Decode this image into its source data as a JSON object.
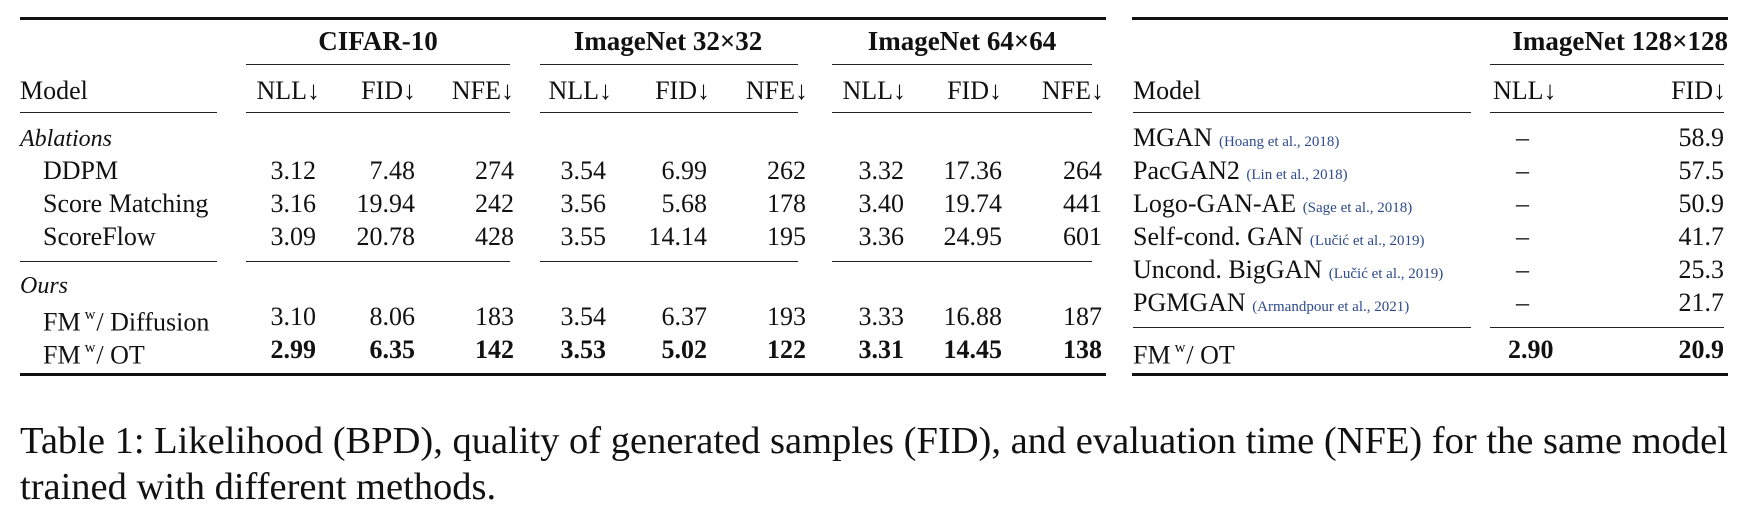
{
  "left_table": {
    "groups": [
      "CIFAR-10",
      "ImageNet 32×32",
      "ImageNet 64×64"
    ],
    "model_header": "Model",
    "col_headers": [
      "NLL↓",
      "FID↓",
      "NFE↓",
      "NLL↓",
      "FID↓",
      "NFE↓",
      "NLL↓",
      "FID↓",
      "NFE↓"
    ],
    "sections": [
      {
        "label": "Ablations",
        "rows": [
          {
            "name": "DDPM",
            "values": [
              "3.12",
              "7.48",
              "274",
              "3.54",
              "6.99",
              "262",
              "3.32",
              "17.36",
              "264"
            ]
          },
          {
            "name": "Score Matching",
            "values": [
              "3.16",
              "19.94",
              "242",
              "3.56",
              "5.68",
              "178",
              "3.40",
              "19.74",
              "441"
            ]
          },
          {
            "name": "ScoreFlow",
            "values": [
              "3.09",
              "20.78",
              "428",
              "3.55",
              "14.14",
              "195",
              "3.36",
              "24.95",
              "601"
            ]
          }
        ]
      },
      {
        "label": "Ours",
        "rows": [
          {
            "name_pre": "FM",
            "name_sup": "w",
            "name_post": "/ Diffusion",
            "values": [
              "3.10",
              "8.06",
              "183",
              "3.54",
              "6.37",
              "193",
              "3.33",
              "16.88",
              "187"
            ]
          },
          {
            "name_pre": "FM",
            "name_sup": "w",
            "name_post": "/ OT",
            "values": [
              "2.99",
              "6.35",
              "142",
              "3.53",
              "5.02",
              "122",
              "3.31",
              "14.45",
              "138"
            ]
          }
        ]
      }
    ]
  },
  "right_table": {
    "group": "ImageNet 128×128",
    "model_header": "Model",
    "col_headers": [
      "NLL↓",
      "FID↓"
    ],
    "rows": [
      {
        "name": "MGAN",
        "cite": "(Hoang et al., 2018)",
        "nll": "–",
        "fid": "58.9"
      },
      {
        "name": "PacGAN2",
        "cite": "(Lin et al., 2018)",
        "nll": "–",
        "fid": "57.5"
      },
      {
        "name": "Logo-GAN-AE",
        "cite": "(Sage et al., 2018)",
        "nll": "–",
        "fid": "50.9"
      },
      {
        "name": "Self-cond. GAN",
        "cite": "(Lučić et al., 2019)",
        "nll": "–",
        "fid": "41.7"
      },
      {
        "name": "Uncond. BigGAN",
        "cite": "(Lučić et al., 2019)",
        "nll": "–",
        "fid": "25.3"
      },
      {
        "name": "PGMGAN",
        "cite": "(Armandpour et al., 2021)",
        "nll": "–",
        "fid": "21.7"
      }
    ],
    "final": {
      "name_pre": "FM",
      "name_sup": "w",
      "name_post": "/ OT",
      "nll": "2.90",
      "fid": "20.9"
    }
  },
  "caption": "Table 1: Likelihood (BPD), quality of generated samples (FID), and evaluation time (NFE) for the same model trained with different methods."
}
